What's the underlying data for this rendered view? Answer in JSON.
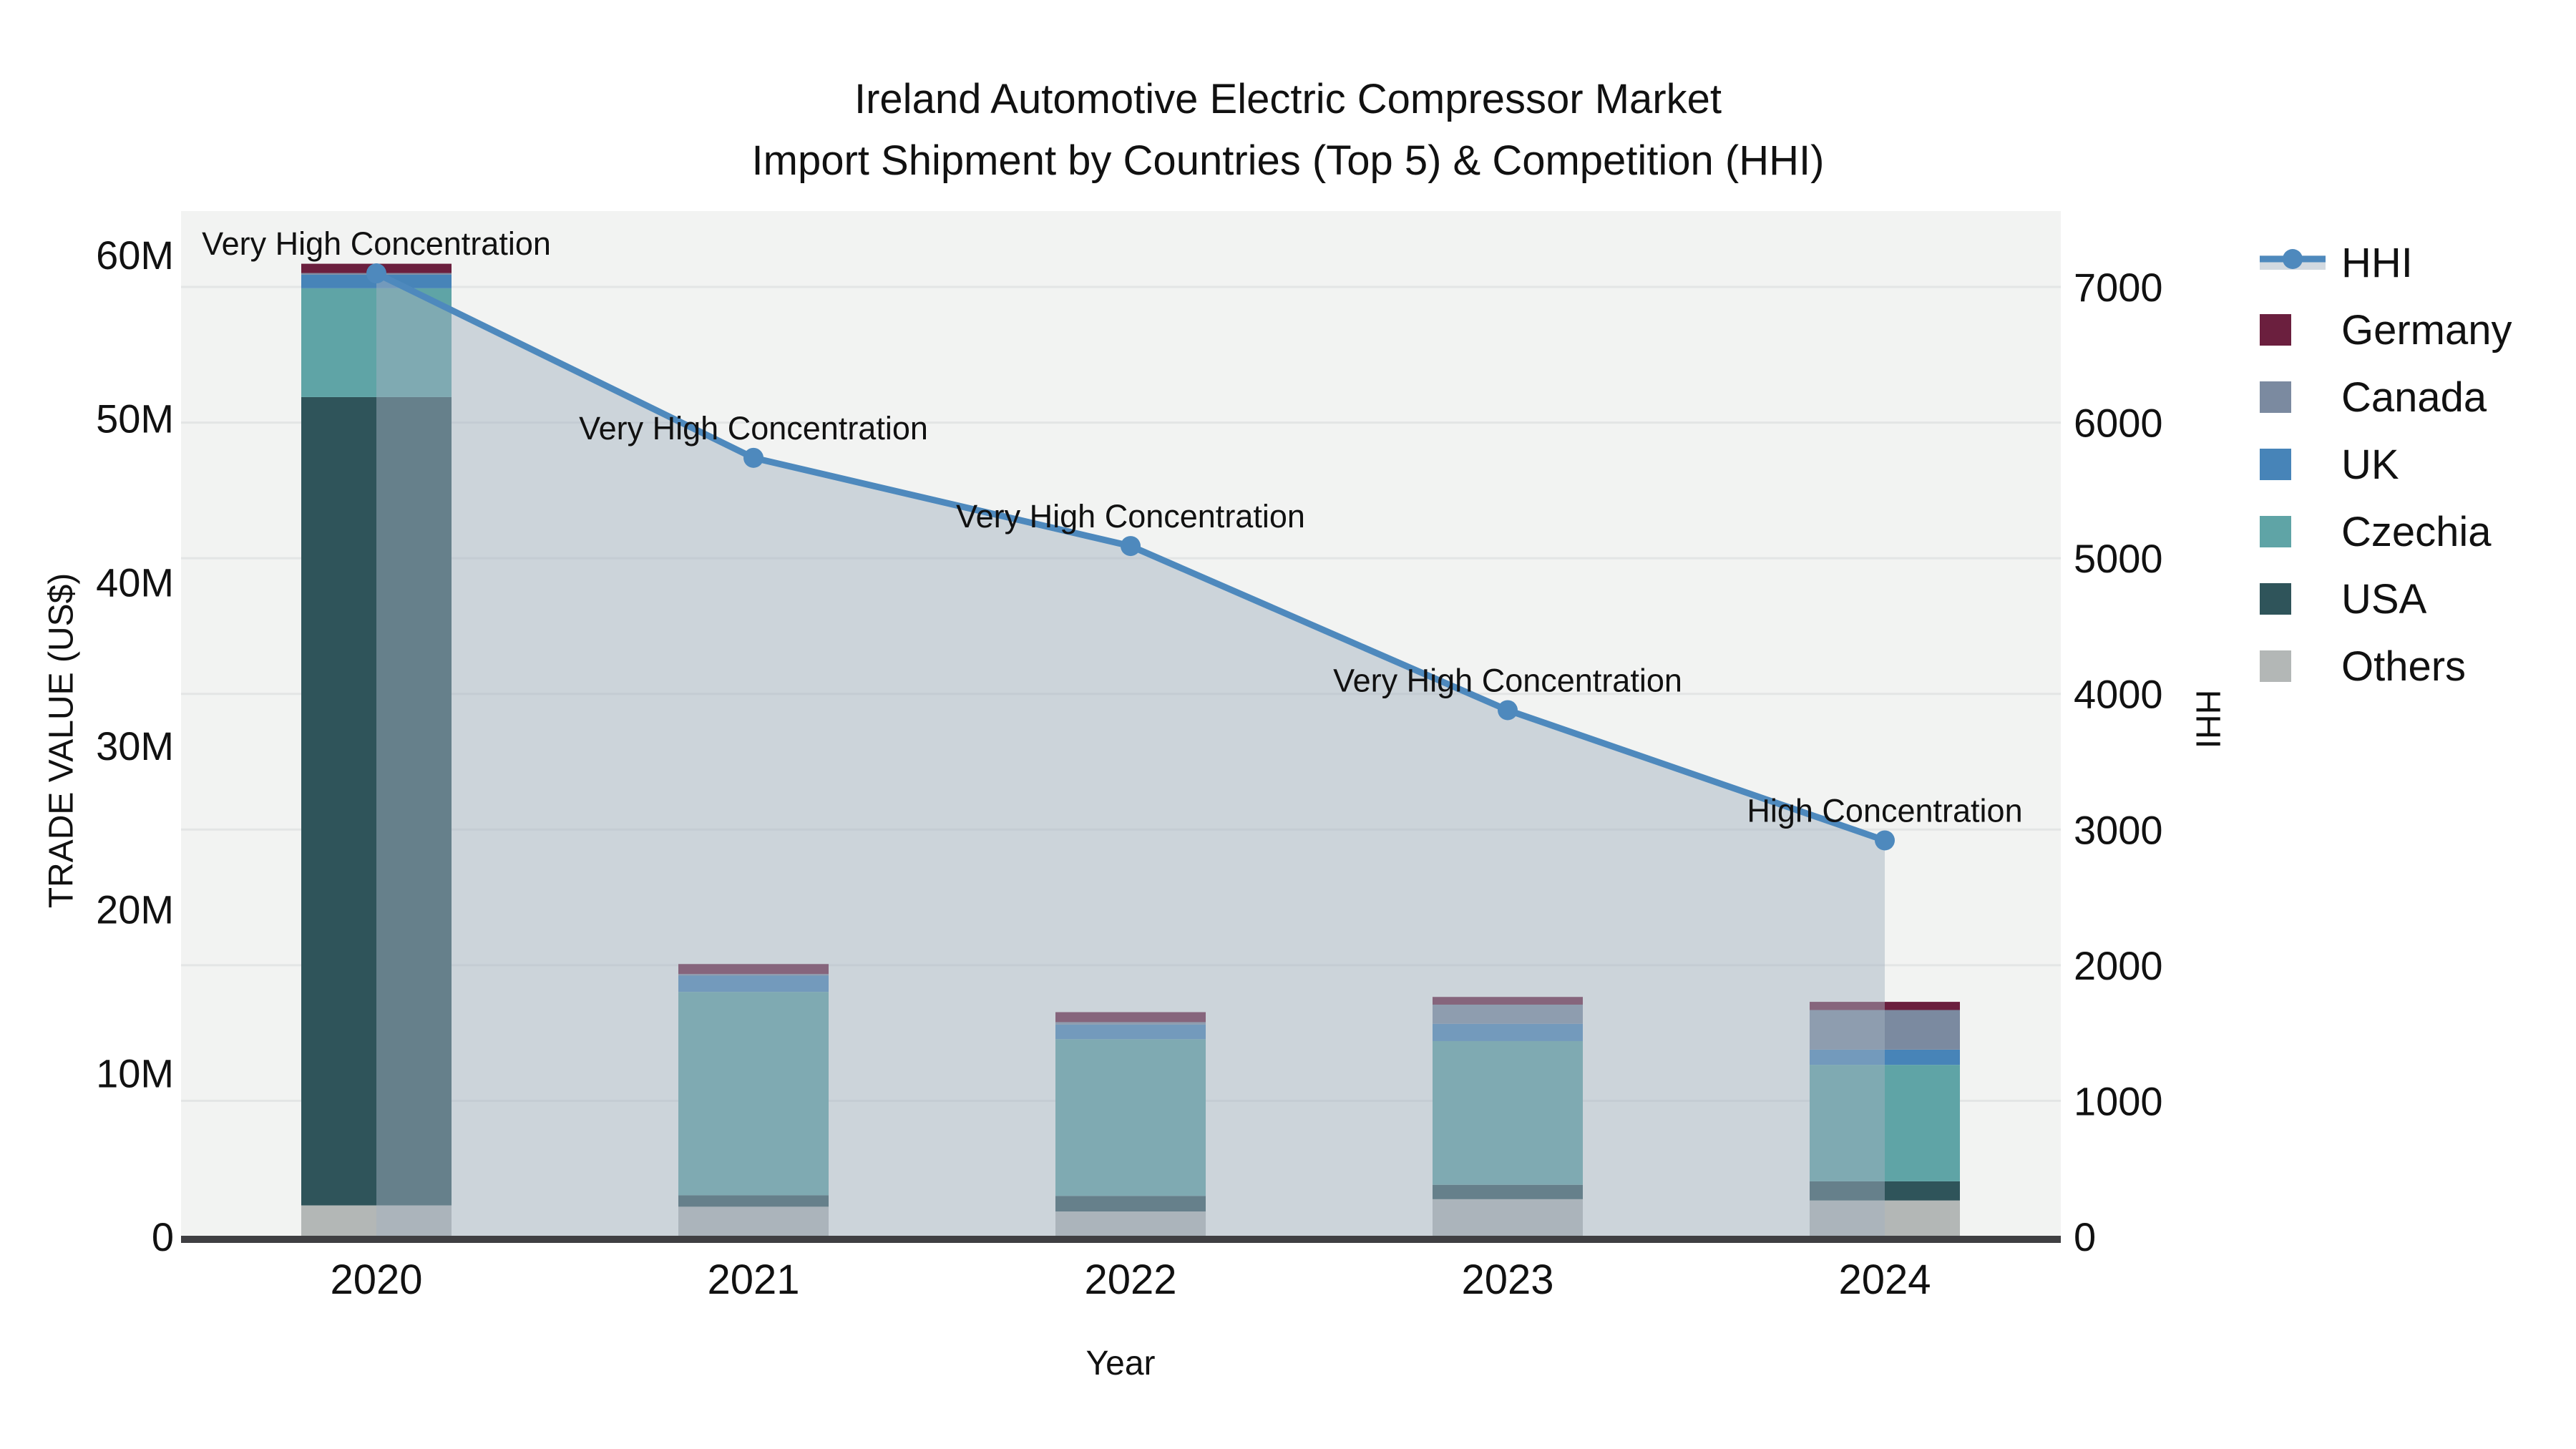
{
  "title": {
    "line1": "Ireland Automotive Electric Compressor Market",
    "line2": "Import Shipment by Countries (Top 5) & Competition (HHI)"
  },
  "axes": {
    "x": {
      "title": "Year",
      "categories": [
        "2020",
        "2021",
        "2022",
        "2023",
        "2024"
      ]
    },
    "y_left": {
      "title": "TRADE VALUE (US$)",
      "ticks": [
        {
          "label": "0",
          "value": 0
        },
        {
          "label": "10M",
          "value": 10000000
        },
        {
          "label": "20M",
          "value": 20000000
        },
        {
          "label": "30M",
          "value": 30000000
        },
        {
          "label": "40M",
          "value": 40000000
        },
        {
          "label": "50M",
          "value": 50000000
        },
        {
          "label": "60M",
          "value": 60000000
        }
      ]
    },
    "y_right": {
      "title": "HHI",
      "ticks": [
        {
          "label": "0",
          "value": 0
        },
        {
          "label": "1000",
          "value": 1000
        },
        {
          "label": "2000",
          "value": 2000
        },
        {
          "label": "3000",
          "value": 3000
        },
        {
          "label": "4000",
          "value": 4000
        },
        {
          "label": "5000",
          "value": 5000
        },
        {
          "label": "6000",
          "value": 6000
        },
        {
          "label": "7000",
          "value": 7000
        }
      ]
    }
  },
  "legend": {
    "items": [
      {
        "label": "HHI",
        "type": "line",
        "color": "#4E89BD"
      },
      {
        "label": "Germany",
        "type": "square",
        "color": "#6B1F3E"
      },
      {
        "label": "Canada",
        "type": "square",
        "color": "#7B8AA0"
      },
      {
        "label": "UK",
        "type": "square",
        "color": "#4784B8"
      },
      {
        "label": "Czechia",
        "type": "square",
        "color": "#5FA4A6"
      },
      {
        "label": "USA",
        "type": "square",
        "color": "#2F545A"
      },
      {
        "label": "Others",
        "type": "square",
        "color": "#B3B7B6"
      }
    ]
  },
  "colors": {
    "plot_bg": "#F2F3F2",
    "gridline": "#E3E5E5",
    "axis_line": "#3F3F42",
    "hhi_line": "#4E89BD",
    "hhi_area": "rgba(164,177,192,0.48)",
    "legend_band": "#D2D9E0",
    "germany": "#6B1F3E",
    "canada": "#7B8AA0",
    "uk": "#4784B8",
    "czechia": "#5FA4A6",
    "usa": "#2F545A",
    "others": "#B3B7B6"
  },
  "chart_data": {
    "type": "combo",
    "x": [
      "2020",
      "2021",
      "2022",
      "2023",
      "2024"
    ],
    "bar_stack_order_bottom_to_top": [
      "Others",
      "USA",
      "Czechia",
      "UK",
      "Canada",
      "Germany"
    ],
    "bar_series": [
      {
        "name": "Others",
        "color_key": "others",
        "values": [
          1900000,
          1820000,
          1530000,
          2280000,
          2200000
        ]
      },
      {
        "name": "USA",
        "color_key": "usa",
        "values": [
          49400000,
          700000,
          950000,
          880000,
          1170000
        ]
      },
      {
        "name": "Czechia",
        "color_key": "czechia",
        "values": [
          6650000,
          12430000,
          9580000,
          8780000,
          7120000
        ]
      },
      {
        "name": "UK",
        "color_key": "uk",
        "values": [
          830000,
          990000,
          890000,
          1060000,
          930000
        ]
      },
      {
        "name": "Canada",
        "color_key": "canada",
        "values": [
          100000,
          100000,
          150000,
          1170000,
          2420000
        ]
      },
      {
        "name": "Germany",
        "color_key": "germany",
        "values": [
          570000,
          610000,
          610000,
          470000,
          500000
        ]
      }
    ],
    "line_series": {
      "name": "HHI",
      "axis": "right",
      "area": true,
      "values": [
        7100,
        5740,
        5090,
        3880,
        2920
      ]
    },
    "annotations": [
      {
        "x_index": 0,
        "text": "Very High Concentration"
      },
      {
        "x_index": 1,
        "text": "Very High Concentration"
      },
      {
        "x_index": 2,
        "text": "Very High Concentration"
      },
      {
        "x_index": 3,
        "text": "Very High Concentration"
      },
      {
        "x_index": 4,
        "text": "High Concentration"
      }
    ],
    "xlabel": "Year",
    "ylabel_left": "TRADE VALUE (US$)",
    "ylabel_right": "HHI",
    "ylim_left": [
      0,
      62700000
    ],
    "ylim_right": [
      0,
      7560
    ],
    "grid": "right-axis-ticks",
    "legend_position": "right"
  }
}
